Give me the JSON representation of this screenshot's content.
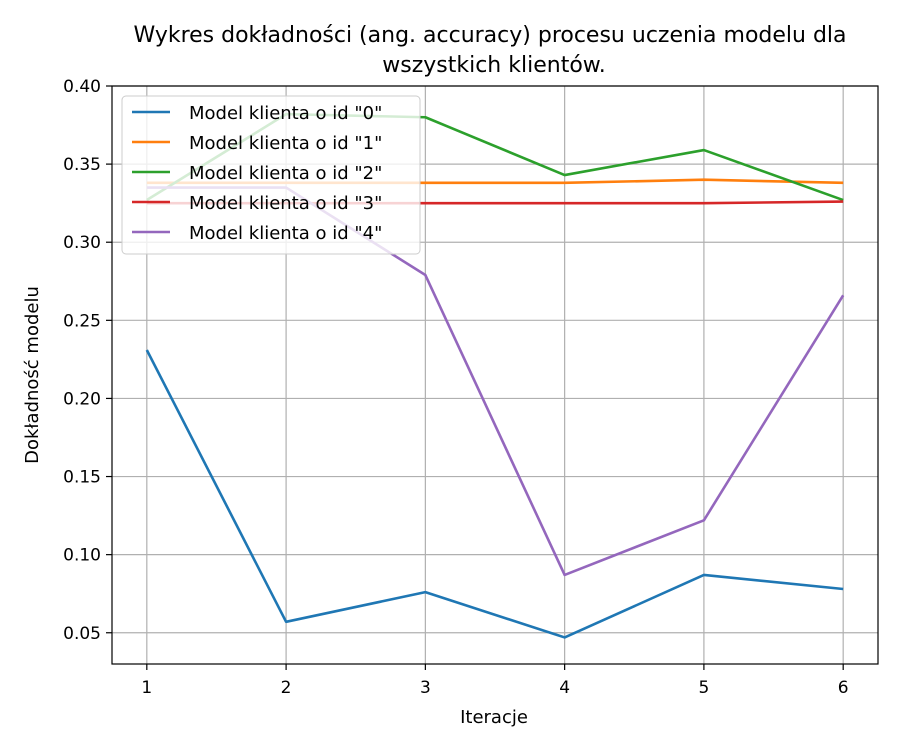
{
  "chart_data": {
    "type": "line",
    "title": "Wykres dokładności (ang. accuracy) procesu uczenia modelu dla",
    "title_line2": "wszystkich klientów.",
    "xlabel": "Iteracje",
    "ylabel": "Dokładność modelu",
    "x": [
      1,
      2,
      3,
      4,
      5,
      6
    ],
    "xlim": [
      0.75,
      6.25
    ],
    "ylim": [
      0.03,
      0.4
    ],
    "x_ticks": [
      1,
      2,
      3,
      4,
      5,
      6
    ],
    "y_ticks": [
      0.05,
      0.1,
      0.15,
      0.2,
      0.25,
      0.3,
      0.35,
      0.4
    ],
    "y_tick_labels": [
      "0.05",
      "0.10",
      "0.15",
      "0.20",
      "0.25",
      "0.30",
      "0.35",
      "0.40"
    ],
    "grid": true,
    "legend_position": "top-left",
    "series": [
      {
        "name": "Model klienta o id \"0\"",
        "color": "#1f77b4",
        "values": [
          0.231,
          0.057,
          0.076,
          0.047,
          0.087,
          0.078
        ]
      },
      {
        "name": "Model klienta o id \"1\"",
        "color": "#ff7f0e",
        "values": [
          0.338,
          0.338,
          0.338,
          0.338,
          0.34,
          0.338
        ]
      },
      {
        "name": "Model klienta o id \"2\"",
        "color": "#2ca02c",
        "values": [
          0.327,
          0.382,
          0.38,
          0.343,
          0.359,
          0.327
        ]
      },
      {
        "name": "Model klienta o id \"3\"",
        "color": "#d62728",
        "values": [
          0.325,
          0.325,
          0.325,
          0.325,
          0.325,
          0.326
        ]
      },
      {
        "name": "Model klienta o id \"4\"",
        "color": "#9467bd",
        "values": [
          0.335,
          0.335,
          0.279,
          0.087,
          0.122,
          0.266
        ]
      }
    ]
  }
}
